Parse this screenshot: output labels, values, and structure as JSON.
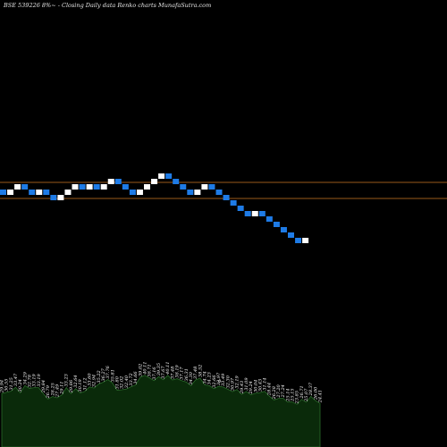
{
  "chart_title": "BSE 539226  8%~ -  Closing Daily data  Renko  charts MunafaSutra.com",
  "colors": {
    "background": "#000000",
    "up_brick": "#ffffff",
    "down_brick": "#1e7be6",
    "level_line": "#9a5a1a",
    "volume_fill": "#0a2a0a",
    "volume_stroke": "#2a6a2a"
  },
  "chart_data": [
    {
      "type": "renko",
      "bricks": [
        "down",
        "up",
        "up",
        "down",
        "down",
        "up",
        "down",
        "down",
        "up",
        "up",
        "up",
        "down",
        "up",
        "down",
        "up",
        "up",
        "down",
        "down",
        "down",
        "up",
        "up",
        "up",
        "up",
        "down",
        "down",
        "down",
        "down",
        "up",
        "up",
        "down",
        "down",
        "down",
        "down",
        "down",
        "down",
        "up",
        "down",
        "down",
        "down",
        "down",
        "down",
        "down",
        "up"
      ],
      "levels": [
        "upper",
        "lower"
      ]
    },
    {
      "type": "bar",
      "series": [
        {
          "values": [
            29.94,
            30.55,
            31.25,
            33.47,
            30.24,
            34.29,
            32.78,
            33.19,
            33.19,
            29.84,
            26.79,
            28.25,
            27.49,
            29.11,
            33.23,
            29.86,
            32.64,
            30.19,
            31.12,
            33.6,
            32.94,
            35.22,
            36.27,
            37.76,
            35.81,
            31.8,
            32.02,
            32.4,
            33.72,
            34.66,
            39.02,
            40.11,
            38.71,
            37.16,
            39.35,
            37.67,
            40.11,
            37.48,
            38.19,
            37.17,
            36.31,
            34.3,
            37.48,
            38.52,
            34.74,
            34.23,
            32.66,
            33.97,
            33.49,
            32.3,
            30.97,
            32.19,
            29.43,
            31.09,
            29.24,
            30.04,
            30.43,
            31.14,
            28.44,
            26.28,
            27.2,
            27.24,
            25.14,
            25.15,
            23.85,
            26.71,
            25.07,
            28.37,
            26.0,
            24.41
          ],
          "labels": [
            "29.94",
            "30.55",
            "31.25",
            "33.47",
            "30.24",
            "34.29",
            "32.78",
            "33.19",
            "33.19",
            "29.84",
            "26.79",
            "28.25",
            "27.49",
            "29.11",
            "33.23",
            "29.86",
            "32.64",
            "30.19",
            "31.12",
            "33.60",
            "32.94",
            "35.22",
            "36.27",
            "37.76",
            "35.81",
            "31.80",
            "32.02",
            "32.40",
            "33.72",
            "34.66",
            "39.02",
            "40.11",
            "38.71",
            "37.16",
            "39.35",
            "37.67",
            "40.11",
            "37.48",
            "38.19",
            "37.17",
            "36.31",
            "34.30",
            "37.48",
            "38.52",
            "34.74",
            "34.23",
            "32.66",
            "33.97",
            "33.49",
            "32.30",
            "30.97",
            "32.19",
            "29.43",
            "31.09",
            "29.24",
            "30.04",
            "30.43",
            "31.14",
            "28.44",
            "26.28",
            "27.20",
            "27.24",
            "25.14",
            "25.15",
            "23.85",
            "26.71",
            "25.07",
            "28.37",
            "26.00",
            "24.41"
          ]
        }
      ],
      "marker_text": "0"
    }
  ]
}
